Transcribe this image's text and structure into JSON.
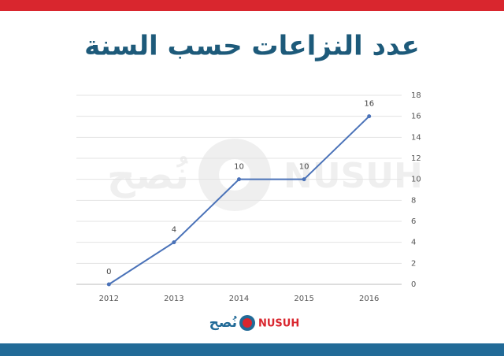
{
  "chart_data": {
    "type": "line",
    "title": "عدد النزاعات حسب السنة",
    "categories": [
      "2012",
      "2013",
      "2014",
      "2015",
      "2016"
    ],
    "series": [
      {
        "values": [
          0,
          4,
          10,
          10,
          16
        ],
        "color": "#4a72b8"
      }
    ],
    "ylim": [
      0,
      18
    ],
    "yticks": [
      0,
      2,
      4,
      6,
      8,
      10,
      12,
      14,
      16,
      18
    ],
    "grid": true,
    "data_labels": true
  },
  "logo": {
    "latin": "NUSUH",
    "arabic": "نُصح"
  }
}
